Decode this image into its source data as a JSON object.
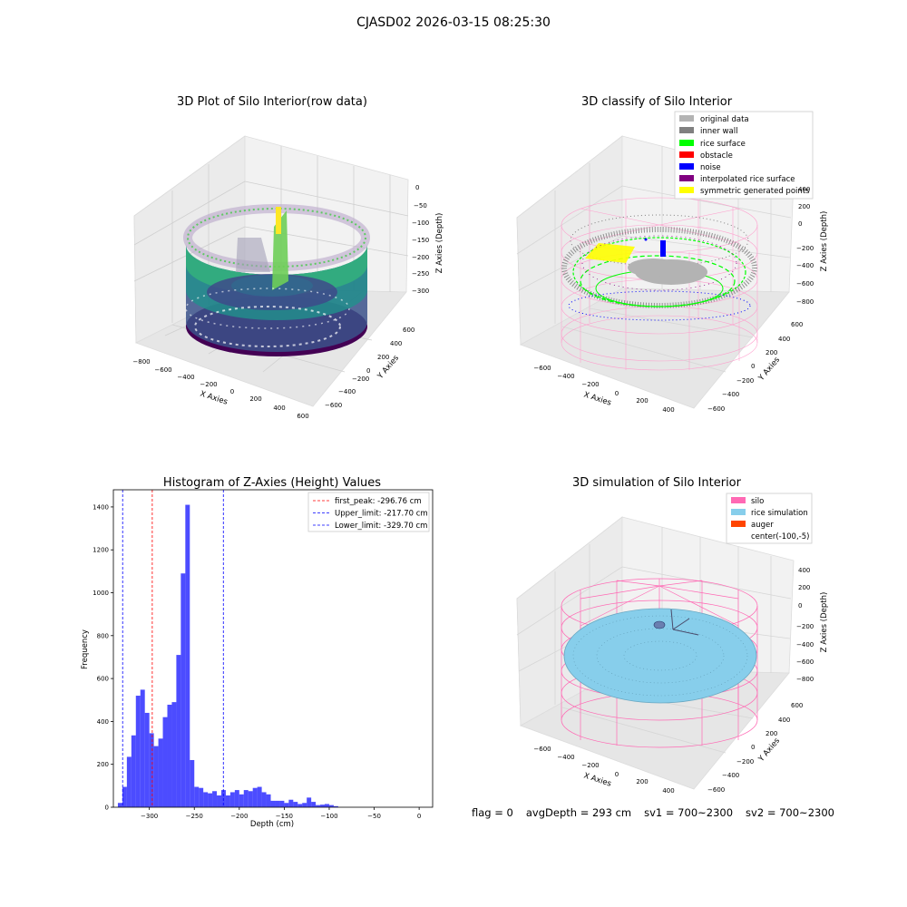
{
  "suptitle": "CJASD02 2026-03-15 08:25:30",
  "panels": {
    "raw": {
      "title": "3D Plot of Silo Interior(row data)",
      "xlabel": "X Axies",
      "ylabel": "Y Axies",
      "zlabel": "Z Axies (Depth)",
      "xticks": [
        "−800",
        "−600",
        "−400",
        "−200",
        "0",
        "200",
        "400",
        "600"
      ],
      "yticks": [
        "600",
        "400",
        "200",
        "0",
        "−200",
        "−400",
        "−600"
      ],
      "zticks": [
        "0",
        "−50",
        "−100",
        "−150",
        "−200",
        "−250",
        "−300"
      ]
    },
    "classify": {
      "title": "3D classify of Silo Interior",
      "xlabel": "X Axies",
      "ylabel": "Y Axies",
      "zlabel": "Z Axies (Depth)",
      "xticks": [
        "−600",
        "−400",
        "−200",
        "0",
        "200",
        "400"
      ],
      "yticks": [
        "600",
        "400",
        "200",
        "0",
        "−200",
        "−400",
        "−600"
      ],
      "zticks": [
        "400",
        "200",
        "0",
        "−200",
        "−400",
        "−600",
        "−800"
      ],
      "legend": [
        {
          "label": "original data",
          "color": "#b3b3b3"
        },
        {
          "label": "inner wall",
          "color": "#808080"
        },
        {
          "label": "rice surface",
          "color": "#00ff00"
        },
        {
          "label": "obstacle",
          "color": "#ff0000"
        },
        {
          "label": "noise",
          "color": "#0000ff"
        },
        {
          "label": "interpolated rice surface",
          "color": "#800080"
        },
        {
          "label": "symmetric generated points",
          "color": "#ffff00"
        }
      ]
    },
    "simulation": {
      "title": "3D simulation of Silo Interior",
      "xlabel": "X Axies",
      "ylabel": "Y Axies",
      "zlabel": "Z Axies (Depth)",
      "xticks": [
        "−600",
        "−400",
        "−200",
        "0",
        "200",
        "400"
      ],
      "yticks": [
        "600",
        "400",
        "200",
        "0",
        "−200",
        "−400",
        "−600"
      ],
      "zticks": [
        "400",
        "200",
        "0",
        "−200",
        "−400",
        "−600",
        "−800"
      ],
      "legend": [
        {
          "label": "silo",
          "color": "#ff69b4"
        },
        {
          "label": "rice simulation",
          "color": "#87ceeb"
        },
        {
          "label": "auger",
          "color": "#ff4500"
        },
        {
          "label": "center(-100,-5)",
          "color": ""
        }
      ]
    }
  },
  "chart_data": {
    "type": "bar",
    "title": "Histogram of Z-Axies (Height) Values",
    "xlabel": "Depth (cm)",
    "ylabel": "Frequency",
    "xlim": [
      -340,
      15
    ],
    "ylim": [
      0,
      1480
    ],
    "xticks": [
      -300,
      -250,
      -200,
      -150,
      -100,
      -50,
      0
    ],
    "yticks": [
      0,
      200,
      400,
      600,
      800,
      1000,
      1200,
      1400
    ],
    "bar_color": "#0000ff",
    "bin_start": -335,
    "bin_width": 5,
    "values": [
      20,
      95,
      235,
      335,
      520,
      548,
      440,
      345,
      285,
      320,
      420,
      478,
      490,
      710,
      1090,
      1410,
      220,
      95,
      90,
      70,
      65,
      75,
      55,
      80,
      55,
      70,
      80,
      60,
      80,
      75,
      90,
      95,
      70,
      60,
      30,
      30,
      30,
      20,
      35,
      25,
      15,
      20,
      45,
      25,
      10,
      12,
      15,
      10,
      5,
      0
    ],
    "vlines": [
      {
        "label": "first_peak: -296.76 cm",
        "x": -296.76,
        "color": "#ff0000"
      },
      {
        "label": "Upper_limit: -217.70 cm",
        "x": -217.7,
        "color": "#0000ff"
      },
      {
        "label": "Lower_limit: -329.70 cm",
        "x": -329.7,
        "color": "#0000ff"
      }
    ]
  },
  "footer": {
    "flag": "flag = 0",
    "avg": "avgDepth = 293 cm",
    "sv1": "sv1 = 700~2300",
    "sv2": "sv2 = 700~2300"
  }
}
